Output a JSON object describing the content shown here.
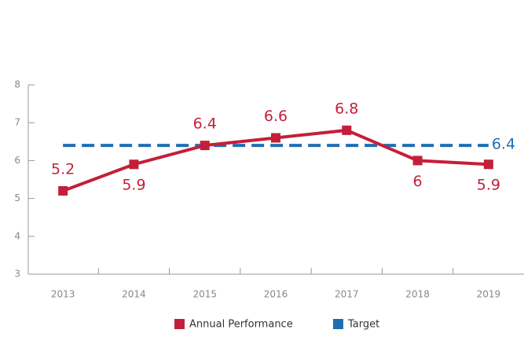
{
  "chart_data": {
    "type": "line",
    "categories": [
      "2013",
      "2014",
      "2015",
      "2016",
      "2017",
      "2018",
      "2019"
    ],
    "series": [
      {
        "name": "Annual Performance",
        "color": "#c41f3a",
        "values": [
          5.2,
          5.9,
          6.4,
          6.6,
          6.8,
          6,
          5.9
        ]
      },
      {
        "name": "Target",
        "color": "#1f6eb4",
        "values": [
          6.4,
          6.4,
          6.4,
          6.4,
          6.4,
          6.4,
          6.4
        ]
      }
    ],
    "ylim": [
      3,
      8
    ],
    "yticks": [
      3,
      4,
      5,
      6,
      7,
      8
    ]
  }
}
